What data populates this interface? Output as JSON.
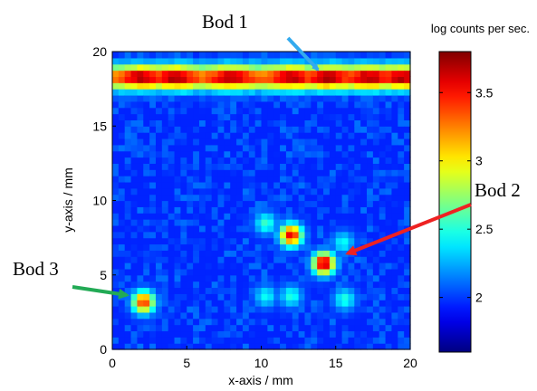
{
  "chart_data": {
    "type": "heatmap",
    "title": "",
    "xlabel": "x-axis / mm",
    "ylabel": "y-axis / mm",
    "xlim": [
      0,
      20
    ],
    "ylim": [
      0,
      20
    ],
    "xticks": [
      0,
      5,
      10,
      15,
      20
    ],
    "yticks": [
      0,
      5,
      10,
      15,
      20
    ],
    "colorbar": {
      "title": "log counts per sec.",
      "range": [
        1.6,
        3.8
      ],
      "ticks": [
        2,
        2.5,
        3,
        3.5
      ],
      "colormap": "jet"
    },
    "background_level": 1.95,
    "band": {
      "y_center": 18.3,
      "y_halfwidth": 0.9,
      "x_range": [
        0,
        20
      ],
      "level_max": 3.75,
      "level_min": 3.3,
      "hotspots_x": [
        2,
        4.2,
        8,
        12,
        14.5,
        17.2,
        19.5
      ]
    },
    "spots": [
      {
        "x": 14.2,
        "y": 5.8,
        "level": 3.75
      },
      {
        "x": 12.0,
        "y": 7.7,
        "level": 3.6
      },
      {
        "x": 2.1,
        "y": 3.2,
        "level": 3.45
      },
      {
        "x": 10.3,
        "y": 8.5,
        "level": 2.55
      },
      {
        "x": 12.0,
        "y": 3.6,
        "level": 2.5
      },
      {
        "x": 15.6,
        "y": 3.4,
        "level": 2.5
      },
      {
        "x": 10.3,
        "y": 3.6,
        "level": 2.45
      },
      {
        "x": 15.5,
        "y": 7.2,
        "level": 2.45
      }
    ],
    "annotations": [
      {
        "label": "Bod 1",
        "arrow_color": "#33aaee",
        "x": 14.3,
        "y": 18.2
      },
      {
        "label": "Bod 2",
        "arrow_color": "#ee2222",
        "x": 15.4,
        "y": 6.2
      },
      {
        "label": "Bod 3",
        "arrow_color": "#22aa55",
        "x": 1.0,
        "y": 3.5
      }
    ]
  }
}
